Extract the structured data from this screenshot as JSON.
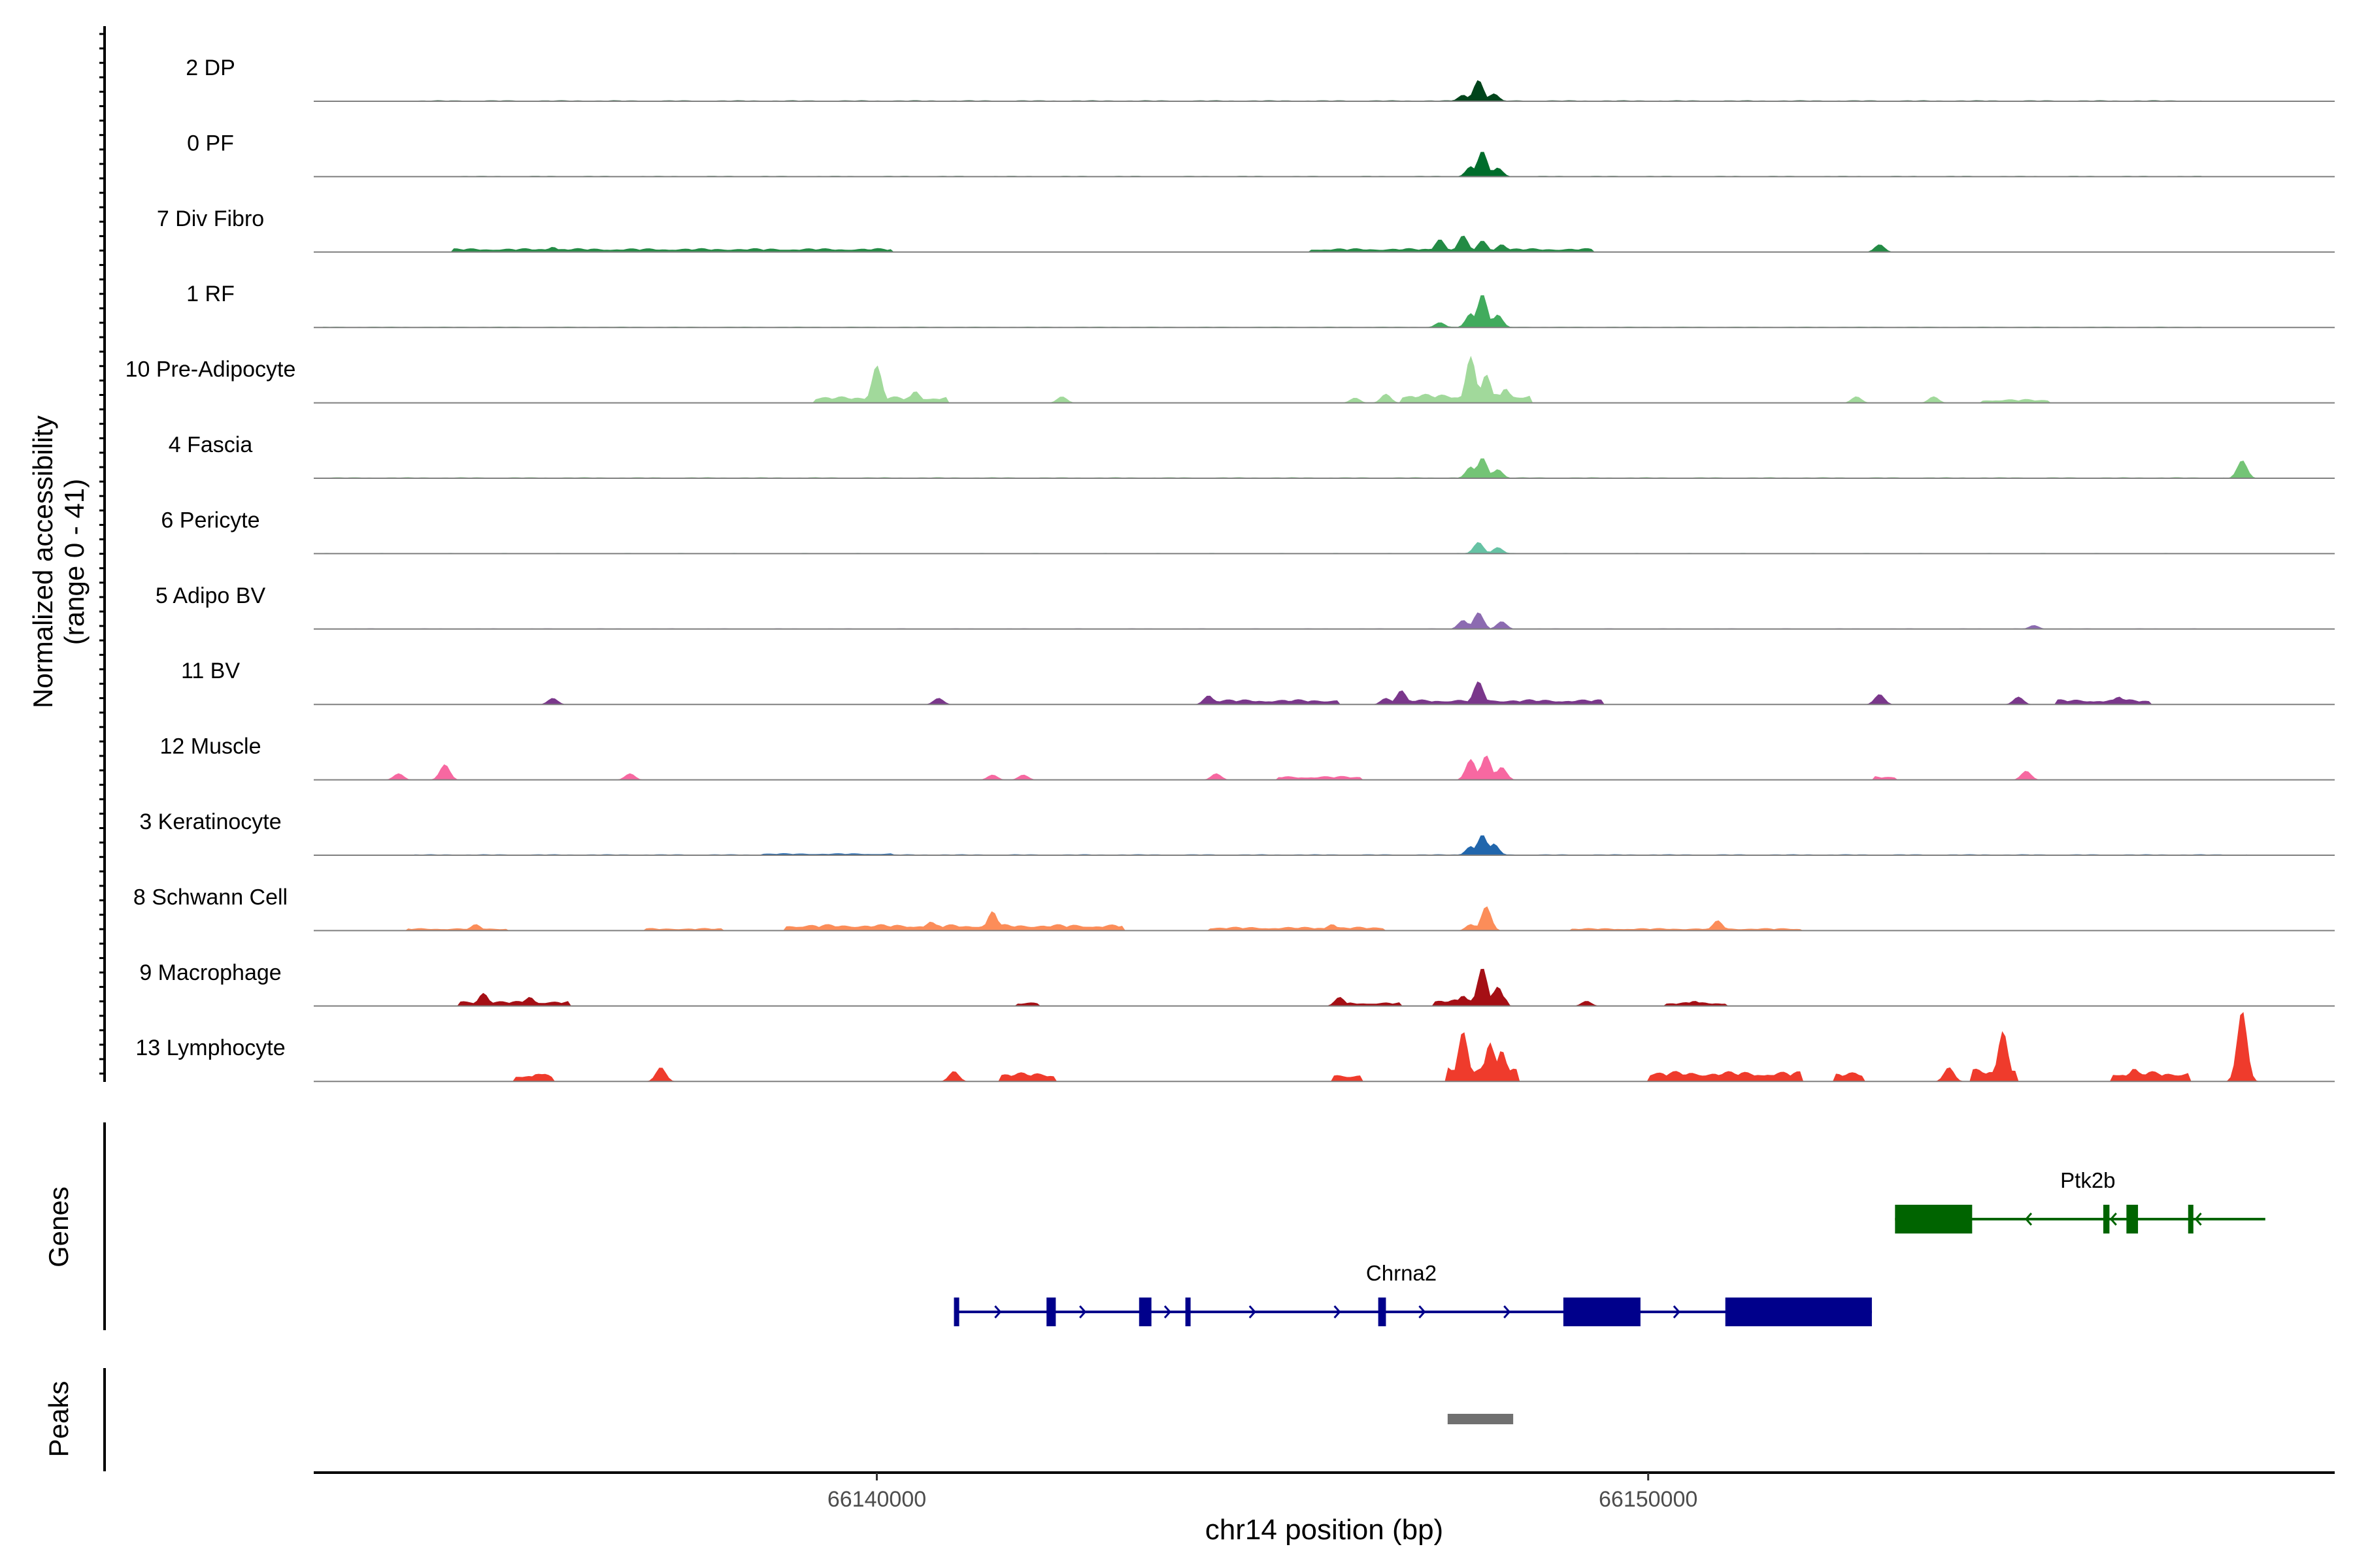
{
  "chart_data": {
    "type": "area",
    "title": "",
    "ylabel_line1": "Normalized accessibility",
    "ylabel_line2": "(range 0 - 41)",
    "y_range": [
      0,
      41
    ],
    "xlabel": "chr14 position (bp)",
    "xlim": [
      66132700,
      66158900
    ],
    "xticks": [
      66140000,
      66150000
    ],
    "xtick_labels": [
      "66140000",
      "66150000"
    ],
    "tracks": [
      {
        "name": "2 DP",
        "color": "#00441b",
        "peaks": [
          [
            66147600,
            10
          ],
          [
            66147800,
            33
          ],
          [
            66148000,
            12
          ]
        ],
        "bg": [
          [
            66134000,
            66157200,
            1.5
          ]
        ]
      },
      {
        "name": "0 PF",
        "color": "#006d2c",
        "peaks": [
          [
            66147700,
            16
          ],
          [
            66147850,
            40
          ],
          [
            66148050,
            14
          ]
        ],
        "bg": [
          [
            66134300,
            66157200,
            1.2
          ]
        ]
      },
      {
        "name": "7 Div Fibro",
        "color": "#238b45",
        "peaks": [
          [
            66147300,
            20
          ],
          [
            66147600,
            26
          ],
          [
            66147850,
            18
          ],
          [
            66148100,
            12
          ],
          [
            66153000,
            12
          ],
          [
            66135800,
            8
          ]
        ],
        "bg": [
          [
            66134500,
            66140200,
            6
          ],
          [
            66145600,
            66149300,
            6
          ]
        ]
      },
      {
        "name": "1 RF",
        "color": "#41ab5d",
        "peaks": [
          [
            66147300,
            8
          ],
          [
            66147700,
            22
          ],
          [
            66147850,
            52
          ],
          [
            66148050,
            20
          ]
        ],
        "bg": [
          [
            66132800,
            66157200,
            1.2
          ]
        ]
      },
      {
        "name": "10 Pre-Adipocyte",
        "color": "#a1d99b",
        "peaks": [
          [
            66140000,
            58
          ],
          [
            66140500,
            18
          ],
          [
            66147700,
            72
          ],
          [
            66147900,
            44
          ],
          [
            66148150,
            22
          ],
          [
            66142400,
            10
          ],
          [
            66146600,
            14
          ],
          [
            66146200,
            8
          ],
          [
            66152700,
            10
          ],
          [
            66153700,
            10
          ]
        ],
        "bg": [
          [
            66139200,
            66140900,
            10
          ],
          [
            66146800,
            66148500,
            14
          ],
          [
            66154300,
            66155200,
            6
          ]
        ]
      },
      {
        "name": "4 Fascia",
        "color": "#74c476",
        "peaks": [
          [
            66147700,
            18
          ],
          [
            66147850,
            32
          ],
          [
            66148050,
            14
          ],
          [
            66157700,
            28
          ]
        ],
        "bg": [
          [
            66132800,
            66157500,
            1.5
          ]
        ]
      },
      {
        "name": "6 Pericyte",
        "color": "#66c2a4",
        "peaks": [
          [
            66147800,
            18
          ],
          [
            66148050,
            10
          ]
        ],
        "bg": [
          [
            66132800,
            66157200,
            1
          ]
        ]
      },
      {
        "name": "5 Adipo BV",
        "color": "#8c6bb1",
        "peaks": [
          [
            66147600,
            14
          ],
          [
            66147800,
            26
          ],
          [
            66148100,
            12
          ],
          [
            66155000,
            6
          ]
        ],
        "bg": [
          [
            66132800,
            66157200,
            1
          ]
        ]
      },
      {
        "name": "11 BV",
        "color": "#7a378b",
        "peaks": [
          [
            66135800,
            10
          ],
          [
            66140800,
            10
          ],
          [
            66144300,
            14
          ],
          [
            66146600,
            10
          ],
          [
            66146800,
            22
          ],
          [
            66147800,
            36
          ],
          [
            66153000,
            16
          ],
          [
            66154800,
            12
          ],
          [
            66156100,
            12
          ]
        ],
        "bg": [
          [
            66144300,
            66146000,
            8
          ],
          [
            66146500,
            66149400,
            8
          ],
          [
            66155300,
            66156500,
            8
          ]
        ]
      },
      {
        "name": "12 Muscle",
        "color": "#f768a1",
        "peaks": [
          [
            66134400,
            24
          ],
          [
            66133800,
            10
          ],
          [
            66136800,
            10
          ],
          [
            66141500,
            8
          ],
          [
            66141900,
            8
          ],
          [
            66144400,
            10
          ],
          [
            66147700,
            32
          ],
          [
            66147900,
            38
          ],
          [
            66148100,
            20
          ],
          [
            66154900,
            14
          ]
        ],
        "bg": [
          [
            66145200,
            66146300,
            6
          ],
          [
            66152900,
            66153200,
            6
          ]
        ]
      },
      {
        "name": "3 Keratinocyte",
        "color": "#2166ac",
        "peaks": [
          [
            66147700,
            14
          ],
          [
            66147850,
            32
          ],
          [
            66148000,
            18
          ]
        ],
        "bg": [
          [
            66134000,
            66157800,
            1.5
          ],
          [
            66138500,
            66140200,
            3
          ]
        ]
      },
      {
        "name": "8 Schwann Cell",
        "color": "#fc8d59",
        "peaks": [
          [
            66141500,
            30
          ],
          [
            66140700,
            14
          ],
          [
            66147700,
            10
          ],
          [
            66147900,
            38
          ],
          [
            66150900,
            16
          ],
          [
            66134800,
            10
          ],
          [
            66145900,
            10
          ]
        ],
        "bg": [
          [
            66133900,
            66135200,
            4
          ],
          [
            66137000,
            66138000,
            4
          ],
          [
            66138800,
            66143200,
            10
          ],
          [
            66144300,
            66146600,
            6
          ],
          [
            66149000,
            66152000,
            4
          ]
        ]
      },
      {
        "name": "9 Macrophage",
        "color": "#a50f15",
        "peaks": [
          [
            66134900,
            20
          ],
          [
            66135500,
            14
          ],
          [
            66146000,
            14
          ],
          [
            66147600,
            16
          ],
          [
            66147850,
            60
          ],
          [
            66148050,
            30
          ],
          [
            66149200,
            8
          ],
          [
            66150600,
            8
          ]
        ],
        "bg": [
          [
            66134600,
            66136000,
            8
          ],
          [
            66141800,
            66142100,
            6
          ],
          [
            66146100,
            66146800,
            6
          ],
          [
            66147200,
            66148200,
            10
          ],
          [
            66150200,
            66151000,
            6
          ]
        ]
      },
      {
        "name": "13 Lymphocyte",
        "color": "#ef3b2c",
        "peaks": [
          [
            66137200,
            22
          ],
          [
            66147600,
            78
          ],
          [
            66147950,
            60
          ],
          [
            66148100,
            48
          ],
          [
            66154600,
            78
          ],
          [
            66157700,
            110
          ],
          [
            66153900,
            22
          ],
          [
            66156300,
            20
          ],
          [
            66135600,
            12
          ],
          [
            66141000,
            16
          ]
        ],
        "bg": [
          [
            66135300,
            66135800,
            12
          ],
          [
            66141600,
            66142300,
            14
          ],
          [
            66145900,
            66146300,
            12
          ],
          [
            66147400,
            66148300,
            24
          ],
          [
            66150000,
            66152000,
            16
          ],
          [
            66152400,
            66152800,
            14
          ],
          [
            66154200,
            66154800,
            20
          ],
          [
            66156000,
            66157000,
            16
          ]
        ]
      }
    ],
    "genes": [
      {
        "name": "Chrna2",
        "strand": "+",
        "color": "#00008b",
        "start": 66141000,
        "end": 66152900,
        "exons": [
          [
            66141000,
            66141050
          ],
          [
            66142200,
            66142320
          ],
          [
            66143400,
            66143560
          ],
          [
            66144000,
            66144050
          ],
          [
            66146500,
            66146600
          ],
          [
            66148900,
            66149900
          ],
          [
            66151000,
            66152900
          ]
        ]
      },
      {
        "name": "Ptk2b",
        "strand": "-",
        "color": "#006400",
        "start": 66153200,
        "end": 66158000,
        "exons": [
          [
            66153200,
            66154200
          ],
          [
            66155900,
            66155980
          ],
          [
            66156200,
            66156350
          ],
          [
            66157000,
            66157050
          ]
        ]
      }
    ],
    "peaks_track": [
      {
        "start": 66147400,
        "end": 66148250,
        "color": "#707070"
      }
    ],
    "panel_labels": {
      "genes": "Genes",
      "peaks": "Peaks"
    }
  }
}
